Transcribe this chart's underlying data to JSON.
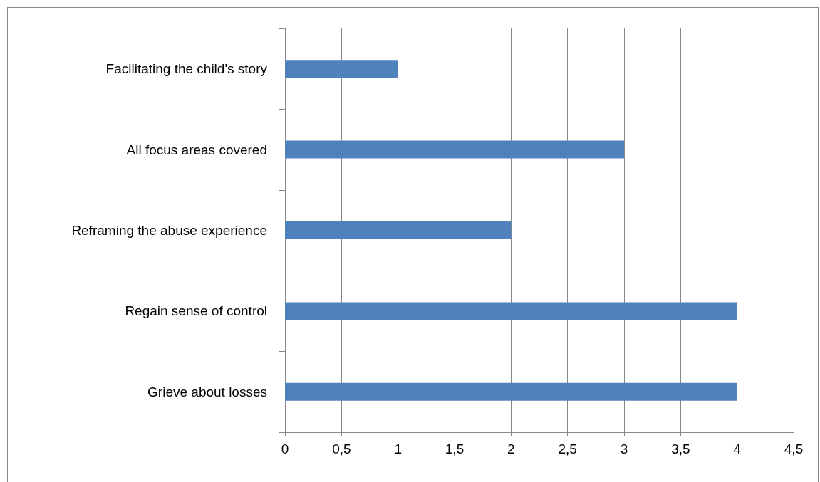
{
  "chart_data": {
    "type": "bar",
    "orientation": "horizontal",
    "categories": [
      "Facilitating the child's story",
      "All focus areas covered",
      "Reframing the abuse experience",
      "Regain sense of control",
      "Grieve about losses"
    ],
    "values": [
      1,
      3,
      2,
      4,
      4
    ],
    "color": "#4f81bd",
    "xlim": [
      0,
      4.5
    ],
    "xticks": [
      0,
      {
        "value": 0.5,
        "label": "0,5"
      },
      1,
      {
        "value": 1.5,
        "label": "1,5"
      },
      2,
      {
        "value": 2.5,
        "label": "2,5"
      },
      3,
      {
        "value": 3.5,
        "label": "3,5"
      },
      4,
      {
        "value": 4.5,
        "label": "4,5"
      }
    ],
    "grid": "x"
  }
}
